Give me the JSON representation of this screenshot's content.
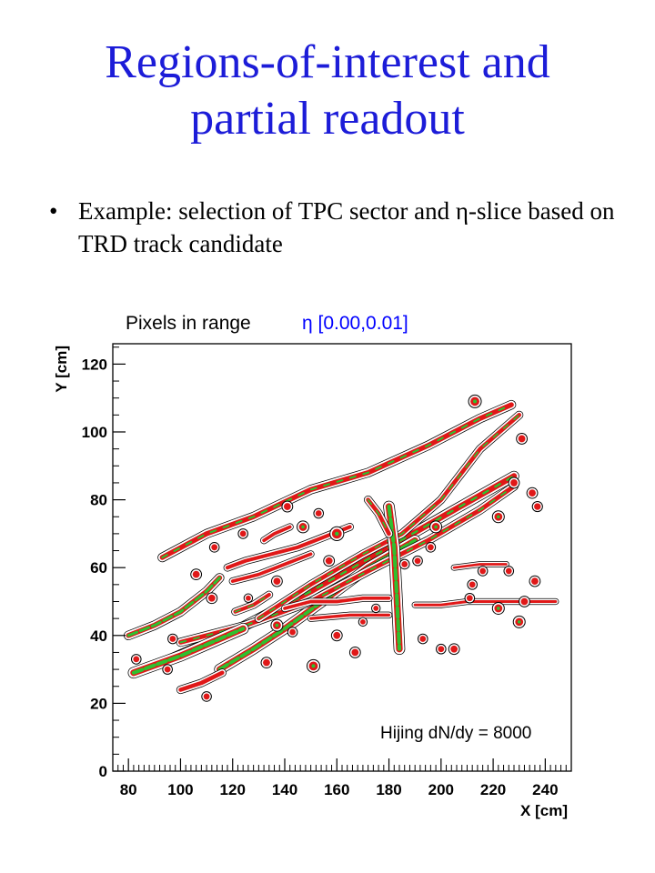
{
  "slide": {
    "title_line1": "Regions-of-interest and",
    "title_line2": "partial readout",
    "bullet_mark": "•",
    "bullet_text": "Example: selection of TPC sector and η-slice based on TRD track candidate"
  },
  "chart_data": {
    "type": "contour",
    "title": "Pixels in range",
    "title_range": "η [0.00,0.01]",
    "xlabel": "X [cm]",
    "ylabel": "Y [cm]",
    "annotation": "Hijing dN/dy = 8000",
    "xlim": [
      74,
      250
    ],
    "ylim": [
      0,
      126
    ],
    "x_ticks": [
      80,
      100,
      120,
      140,
      160,
      180,
      200,
      220,
      240
    ],
    "y_ticks": [
      0,
      20,
      40,
      60,
      80,
      100,
      120
    ],
    "grid": false,
    "colors": {
      "outer": "#000000",
      "mid": "#e01818",
      "inner": "#2fc02f",
      "title_range": "#0000ff"
    },
    "tracks": [
      {
        "x": [
          93,
          110,
          128,
          150,
          172,
          195,
          215,
          227
        ],
        "y": [
          63,
          70,
          75,
          83,
          88,
          96,
          104,
          108
        ],
        "w": 2.4,
        "core": "med"
      },
      {
        "x": [
          96,
          120,
          150,
          180,
          205,
          228
        ],
        "y": [
          33,
          41,
          53,
          66,
          77,
          87
        ],
        "w": 2.8,
        "core": "med"
      },
      {
        "x": [
          115,
          128,
          140,
          158,
          172,
          190
        ],
        "y": [
          30,
          36,
          42,
          52,
          60,
          68
        ],
        "w": 3.0,
        "core": "strong"
      },
      {
        "x": [
          100,
          125,
          150,
          172,
          195,
          215,
          228
        ],
        "y": [
          38,
          43,
          50,
          59,
          68,
          77,
          84
        ],
        "w": 2.2,
        "core": "med"
      },
      {
        "x": [
          130,
          150,
          170,
          185,
          200,
          215,
          230
        ],
        "y": [
          45,
          55,
          64,
          70,
          80,
          95,
          105
        ],
        "w": 2.0,
        "core": "med"
      },
      {
        "x": [
          80,
          90,
          100,
          110,
          115
        ],
        "y": [
          40,
          43,
          47,
          53,
          57
        ],
        "w": 2.4,
        "core": "strong"
      },
      {
        "x": [
          82,
          100,
          112,
          124
        ],
        "y": [
          29,
          34,
          38,
          42
        ],
        "w": 3.2,
        "core": "strong"
      },
      {
        "x": [
          100,
          108,
          116
        ],
        "y": [
          24,
          26,
          29
        ],
        "w": 2.0,
        "core": "weak"
      },
      {
        "x": [
          118,
          125,
          135,
          145,
          155,
          165
        ],
        "y": [
          60,
          62,
          64,
          66,
          69,
          72
        ],
        "w": 1.8,
        "core": "weak"
      },
      {
        "x": [
          120,
          130,
          140,
          150
        ],
        "y": [
          56,
          58,
          61,
          64
        ],
        "w": 1.6,
        "core": "weak"
      },
      {
        "x": [
          180,
          182,
          183,
          184
        ],
        "y": [
          78,
          66,
          52,
          36
        ],
        "w": 3.2,
        "core": "strong"
      },
      {
        "x": [
          172,
          176,
          180
        ],
        "y": [
          80,
          76,
          70
        ],
        "w": 2.0,
        "core": "med"
      },
      {
        "x": [
          140,
          150,
          160,
          170,
          180
        ],
        "y": [
          48,
          50,
          50,
          51,
          51
        ],
        "w": 1.6,
        "core": "weak"
      },
      {
        "x": [
          190,
          200,
          210,
          222,
          232,
          244
        ],
        "y": [
          49,
          49,
          50,
          50,
          50,
          50
        ],
        "w": 1.3,
        "core": "weak"
      },
      {
        "x": [
          150,
          165,
          180
        ],
        "y": [
          45,
          46,
          46
        ],
        "w": 1.4,
        "core": "weak"
      },
      {
        "x": [
          132,
          136,
          142
        ],
        "y": [
          68,
          70,
          72
        ],
        "w": 1.6,
        "core": "weak"
      },
      {
        "x": [
          121,
          128,
          134
        ],
        "y": [
          47,
          49,
          52
        ],
        "w": 1.8,
        "core": "med"
      },
      {
        "x": [
          205,
          215,
          225
        ],
        "y": [
          60,
          61,
          61
        ],
        "w": 1.2,
        "core": "weak"
      }
    ],
    "blobs": [
      {
        "x": 213,
        "y": 109,
        "r": 2.0
      },
      {
        "x": 231,
        "y": 98,
        "r": 1.6
      },
      {
        "x": 228,
        "y": 85,
        "r": 1.6
      },
      {
        "x": 235,
        "y": 82,
        "r": 1.6
      },
      {
        "x": 237,
        "y": 78,
        "r": 1.5
      },
      {
        "x": 222,
        "y": 75,
        "r": 1.8
      },
      {
        "x": 198,
        "y": 72,
        "r": 1.8
      },
      {
        "x": 196,
        "y": 66,
        "r": 1.4
      },
      {
        "x": 191,
        "y": 62,
        "r": 1.4
      },
      {
        "x": 186,
        "y": 61,
        "r": 1.4
      },
      {
        "x": 160,
        "y": 70,
        "r": 2.2
      },
      {
        "x": 147,
        "y": 72,
        "r": 1.8
      },
      {
        "x": 141,
        "y": 78,
        "r": 1.6
      },
      {
        "x": 153,
        "y": 76,
        "r": 1.4
      },
      {
        "x": 137,
        "y": 56,
        "r": 1.6
      },
      {
        "x": 113,
        "y": 66,
        "r": 1.4
      },
      {
        "x": 124,
        "y": 70,
        "r": 1.4
      },
      {
        "x": 167,
        "y": 35,
        "r": 1.6
      },
      {
        "x": 160,
        "y": 40,
        "r": 1.6
      },
      {
        "x": 151,
        "y": 31,
        "r": 2.0
      },
      {
        "x": 133,
        "y": 32,
        "r": 1.6
      },
      {
        "x": 222,
        "y": 48,
        "r": 1.8
      },
      {
        "x": 230,
        "y": 44,
        "r": 1.8
      },
      {
        "x": 232,
        "y": 50,
        "r": 1.6
      },
      {
        "x": 236,
        "y": 56,
        "r": 1.6
      },
      {
        "x": 212,
        "y": 55,
        "r": 1.4
      },
      {
        "x": 216,
        "y": 59,
        "r": 1.4
      },
      {
        "x": 193,
        "y": 39,
        "r": 1.4
      },
      {
        "x": 200,
        "y": 36,
        "r": 1.4
      },
      {
        "x": 205,
        "y": 36,
        "r": 1.6
      },
      {
        "x": 211,
        "y": 51,
        "r": 1.4
      },
      {
        "x": 226,
        "y": 59,
        "r": 1.4
      },
      {
        "x": 106,
        "y": 58,
        "r": 1.6
      },
      {
        "x": 112,
        "y": 51,
        "r": 1.6
      },
      {
        "x": 83,
        "y": 33,
        "r": 1.4
      },
      {
        "x": 97,
        "y": 39,
        "r": 1.4
      },
      {
        "x": 95,
        "y": 30,
        "r": 1.4
      },
      {
        "x": 110,
        "y": 22,
        "r": 1.4
      },
      {
        "x": 137,
        "y": 43,
        "r": 1.8
      },
      {
        "x": 143,
        "y": 41,
        "r": 1.4
      },
      {
        "x": 157,
        "y": 62,
        "r": 1.6
      },
      {
        "x": 126,
        "y": 51,
        "r": 1.2
      },
      {
        "x": 170,
        "y": 44,
        "r": 1.2
      },
      {
        "x": 175,
        "y": 48,
        "r": 1.2
      }
    ]
  }
}
